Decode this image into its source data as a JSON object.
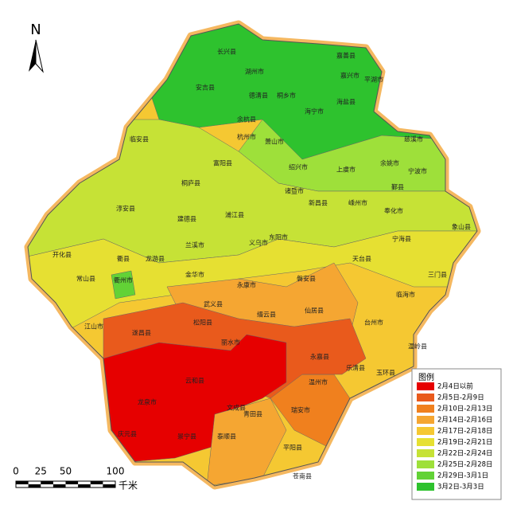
{
  "north": "N",
  "legend": {
    "title": "图例",
    "items": [
      {
        "label": "2月4日以前",
        "color": "#e60000"
      },
      {
        "label": "2月5日-2月9日",
        "color": "#e95a1c"
      },
      {
        "label": "2月10日-2月13日",
        "color": "#f0801e"
      },
      {
        "label": "2月14日-2月16日",
        "color": "#f5a632"
      },
      {
        "label": "2月17日-2月18日",
        "color": "#f5c832"
      },
      {
        "label": "2月19日-2月21日",
        "color": "#e6e032"
      },
      {
        "label": "2月22日-2月24日",
        "color": "#c6e236"
      },
      {
        "label": "2月25日-2月28日",
        "color": "#9ee03a"
      },
      {
        "label": "2月29日-3月1日",
        "color": "#62d236"
      },
      {
        "label": "3月2日-3月3日",
        "color": "#2ec22e"
      }
    ]
  },
  "scale": {
    "ticks": [
      0,
      25,
      50,
      100
    ],
    "unit": "千米"
  },
  "places": [
    "长兴县",
    "湖州市",
    "嘉善县",
    "嘉兴市",
    "平湖市",
    "桐乡市",
    "海宁市",
    "海盐县",
    "德清县",
    "安吉县",
    "余杭县",
    "杭州市",
    "萧山市",
    "绍兴市",
    "上虞市",
    "余姚市",
    "慈溪市",
    "宁波市",
    "鄞县",
    "奉化市",
    "象山县",
    "宁海县",
    "三门县",
    "临海市",
    "天台县",
    "新昌县",
    "嵊州市",
    "诸暨市",
    "富阳县",
    "桐庐县",
    "临安县",
    "淳安县",
    "建德县",
    "兰溪市",
    "浦江县",
    "义乌市",
    "东阳市",
    "金华市",
    "龙游县",
    "衢县",
    "常山县",
    "开化县",
    "江山市",
    "衢州市",
    "武义县",
    "永康市",
    "磐安县",
    "仙居县",
    "台州市",
    "温岭县",
    "玉环县",
    "乐清县",
    "永嘉县",
    "缙云县",
    "丽水市",
    "松阳县",
    "遂昌县",
    "龙泉市",
    "云和县",
    "景宁县",
    "庆元县",
    "青田县",
    "瑞安市",
    "文成县",
    "平阳县",
    "泰顺县",
    "苍南县",
    "温州市"
  ]
}
